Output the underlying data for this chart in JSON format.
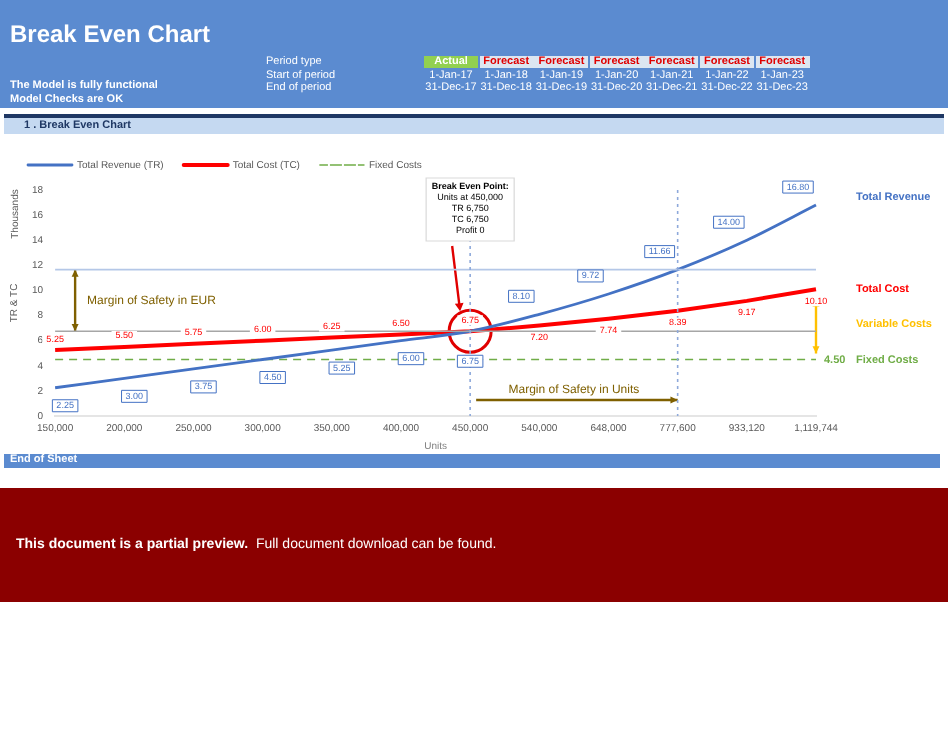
{
  "chart_data": {
    "type": "line",
    "title": "Break Even Chart",
    "xlabel": "Units",
    "ylabel": "TR & TC",
    "categories": [
      "150,000",
      "200,000",
      "250,000",
      "300,000",
      "350,000",
      "400,000",
      "450,000",
      "540,000",
      "648,000",
      "777,600",
      "933,120",
      "1,119,744"
    ],
    "series": [
      {
        "name": "Total Revenue (TR)",
        "color": "#4472c4",
        "values": [
          2.25,
          3.0,
          3.75,
          4.5,
          5.25,
          6.0,
          6.75,
          8.1,
          9.72,
          11.66,
          14.0,
          16.8
        ],
        "value_labels": [
          "2.25",
          "3.00",
          "3.75",
          "4.50",
          "5.25",
          "6.00",
          "6.75",
          "8.10",
          "9.72",
          "11.66",
          "14.00",
          "16.80"
        ]
      },
      {
        "name": "Total Cost (TC)",
        "color": "#ff0000",
        "values": [
          5.25,
          5.5,
          5.75,
          6.0,
          6.25,
          6.5,
          6.75,
          7.2,
          7.74,
          8.39,
          9.17,
          10.1
        ],
        "value_labels": [
          "5.25",
          "5.50",
          "5.75",
          "6.00",
          "6.25",
          "6.50",
          "6.75",
          "7.20",
          "7.74",
          "8.39",
          "9.17",
          "10.10"
        ]
      },
      {
        "name": "Fixed Costs",
        "color": "#70ad47",
        "line_style": "dashed",
        "values": [
          4.5,
          4.5,
          4.5,
          4.5,
          4.5,
          4.5,
          4.5,
          4.5,
          4.5,
          4.5,
          4.5,
          4.5
        ]
      }
    ],
    "ylim": [
      0,
      18
    ],
    "yticks": [
      0,
      2,
      4,
      6,
      8,
      10,
      12,
      14,
      16,
      18
    ],
    "legend": "top left",
    "marker": "none",
    "ref_lines": [
      {
        "axis": "y",
        "value": 6.75,
        "color": "#a6a6a6"
      },
      {
        "axis": "y",
        "value": 11.66,
        "color": "#b4c7e7"
      },
      {
        "axis": "x",
        "value": "450,000",
        "color": "#8ea9db",
        "line_style": "dotted"
      },
      {
        "axis": "x",
        "value": "777,600",
        "color": "#8ea9db",
        "line_style": "dotted"
      }
    ],
    "annotations": [
      "The Model is fully functional",
      "Model Checks are OK",
      "Period type",
      "Start of period",
      "End of period",
      "Actual",
      "Forecast",
      "Forecast",
      "Forecast",
      "Forecast",
      "Forecast",
      "Forecast",
      "1-Jan-17",
      "1-Jan-18",
      "1-Jan-19",
      "1-Jan-20",
      "1-Jan-21",
      "1-Jan-22",
      "1-Jan-23",
      "31-Dec-17",
      "31-Dec-18",
      "31-Dec-19",
      "31-Dec-20",
      "31-Dec-21",
      "31-Dec-22",
      "31-Dec-23",
      "1 . Break Even Chart",
      "Thousands",
      "Margin of Safety in EUR",
      "Margin of Safety in Units",
      "Total Revenue",
      "Total Cost",
      "Variable Costs",
      "Fixed Costs",
      "End of Sheet",
      "This document is a partial preview.",
      "Full document download can be found.",
      "Break Even Point:\nUnits at 450,000\nTR 6,750\nTC 6,750\nProfit 0",
      {
        "text": "4.50",
        "x": "1,119,744",
        "y": 4.5
      }
    ]
  }
}
